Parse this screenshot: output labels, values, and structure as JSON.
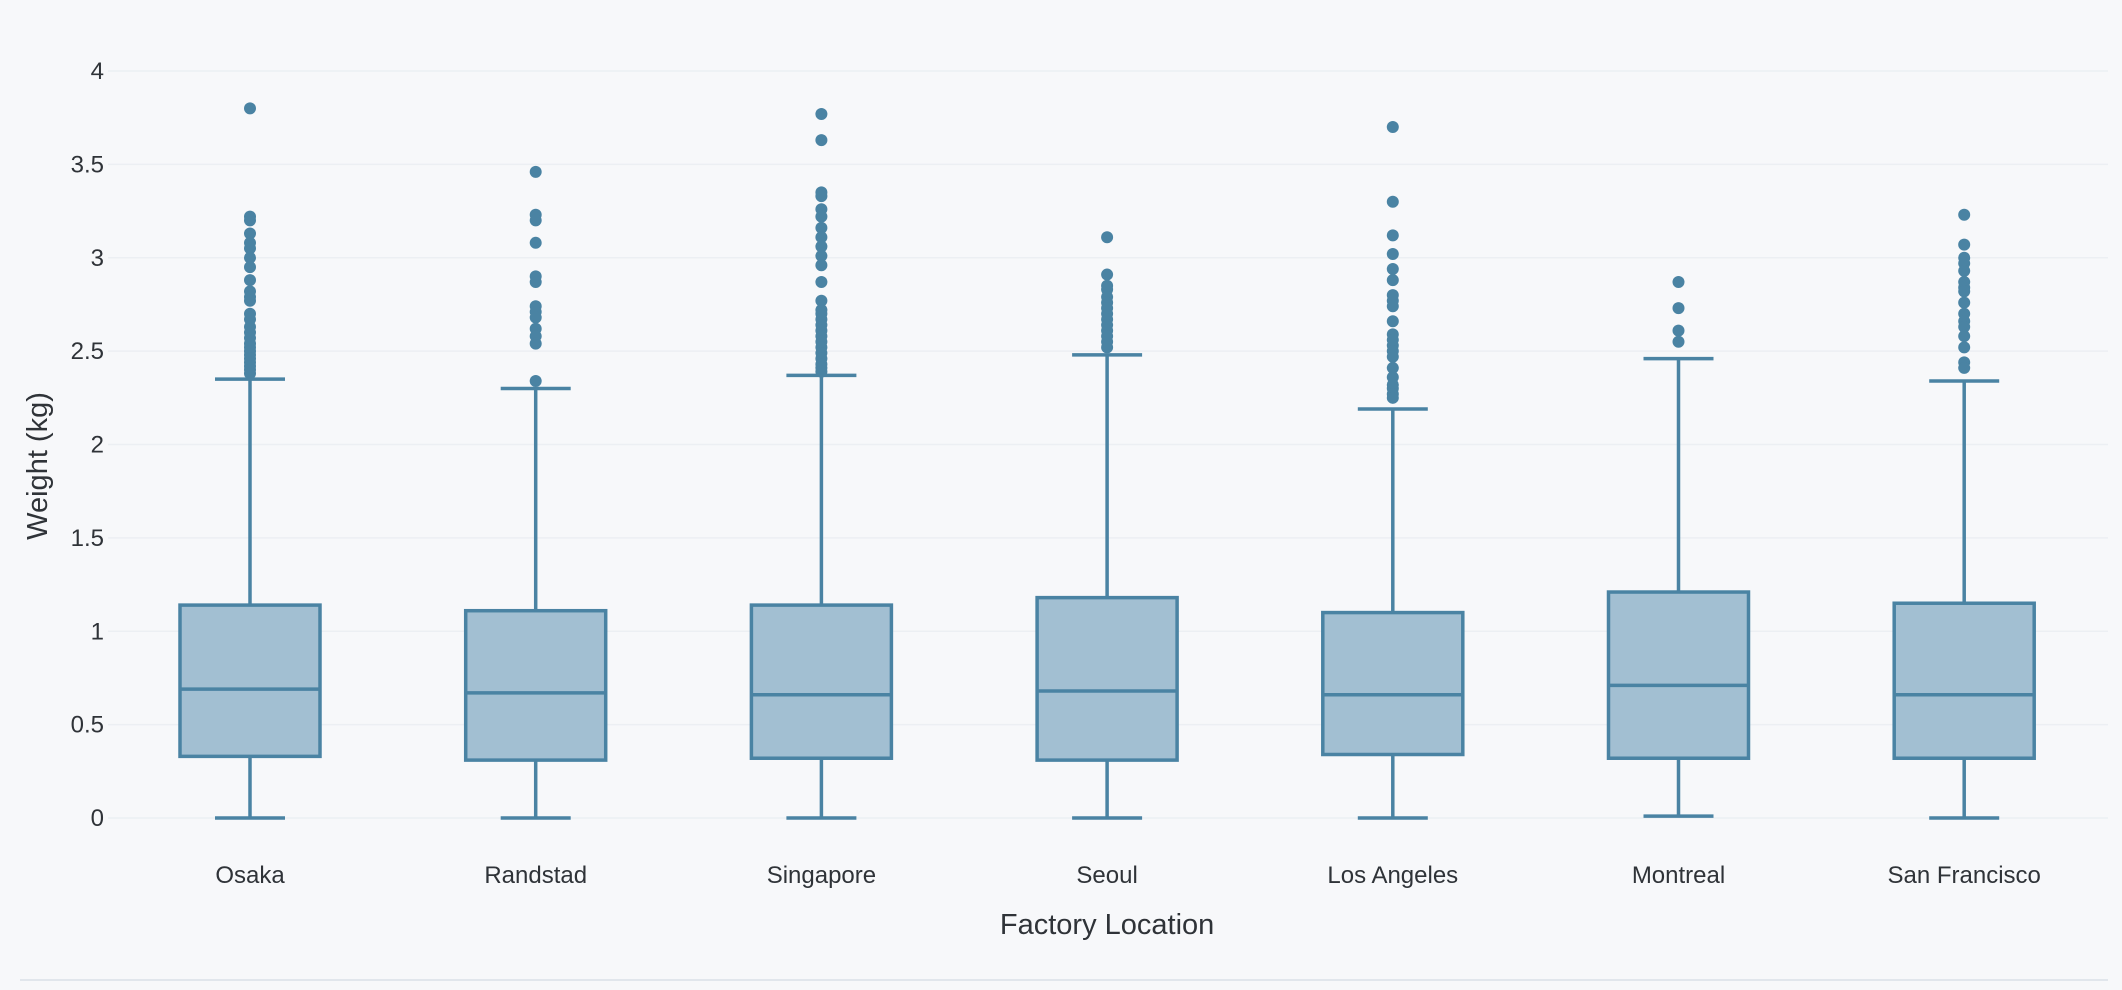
{
  "chart_data": {
    "type": "box",
    "xlabel": "Factory Location",
    "ylabel": "Weight (kg)",
    "ylim": [
      0,
      4
    ],
    "yticks": [
      0,
      0.5,
      1,
      1.5,
      2,
      2.5,
      3,
      3.5,
      4
    ],
    "grid": true,
    "colors": {
      "stroke": "#4a83a3",
      "fill": "#a2bfd2",
      "grid": "#eceff3",
      "text": "#2f3338"
    },
    "categories": [
      "Osaka",
      "Randstad",
      "Singapore",
      "Seoul",
      "Los Angeles",
      "Montreal",
      "San Francisco"
    ],
    "boxes": [
      {
        "category": "Osaka",
        "min": 0,
        "q1": 0.33,
        "median": 0.69,
        "q3": 1.14,
        "max": 2.35,
        "outliers": [
          3.8,
          3.22,
          3.2,
          3.13,
          3.08,
          3.05,
          3.0,
          2.95,
          2.88,
          2.82,
          2.79,
          2.77,
          2.7,
          2.67,
          2.63,
          2.6,
          2.57,
          2.54,
          2.52,
          2.5,
          2.48,
          2.46,
          2.44,
          2.42,
          2.4,
          2.38
        ]
      },
      {
        "category": "Randstad",
        "min": 0,
        "q1": 0.31,
        "median": 0.67,
        "q3": 1.11,
        "max": 2.3,
        "outliers": [
          3.46,
          3.23,
          3.2,
          3.08,
          2.9,
          2.87,
          2.74,
          2.71,
          2.68,
          2.62,
          2.58,
          2.54,
          2.34
        ]
      },
      {
        "category": "Singapore",
        "min": 0,
        "q1": 0.32,
        "median": 0.66,
        "q3": 1.14,
        "max": 2.37,
        "outliers": [
          3.77,
          3.63,
          3.35,
          3.33,
          3.26,
          3.22,
          3.16,
          3.11,
          3.06,
          3.01,
          2.96,
          2.87,
          2.77,
          2.72,
          2.7,
          2.67,
          2.64,
          2.61,
          2.58,
          2.55,
          2.52,
          2.49,
          2.46,
          2.43,
          2.41,
          2.39
        ]
      },
      {
        "category": "Seoul",
        "min": 0,
        "q1": 0.31,
        "median": 0.68,
        "q3": 1.18,
        "max": 2.48,
        "outliers": [
          3.11,
          2.91,
          2.85,
          2.83,
          2.79,
          2.76,
          2.73,
          2.7,
          2.67,
          2.64,
          2.61,
          2.58,
          2.55,
          2.52
        ]
      },
      {
        "category": "Los Angeles",
        "min": 0,
        "q1": 0.34,
        "median": 0.66,
        "q3": 1.1,
        "max": 2.19,
        "outliers": [
          3.7,
          3.3,
          3.12,
          3.02,
          2.94,
          2.88,
          2.8,
          2.77,
          2.74,
          2.66,
          2.59,
          2.56,
          2.53,
          2.5,
          2.47,
          2.41,
          2.36,
          2.32,
          2.3,
          2.27,
          2.25
        ]
      },
      {
        "category": "Montreal",
        "min": 0.01,
        "q1": 0.32,
        "median": 0.71,
        "q3": 1.21,
        "max": 2.46,
        "outliers": [
          2.87,
          2.73,
          2.61,
          2.55
        ]
      },
      {
        "category": "San Francisco",
        "min": 0,
        "q1": 0.32,
        "median": 0.66,
        "q3": 1.15,
        "max": 2.34,
        "outliers": [
          3.23,
          3.07,
          3.0,
          2.97,
          2.93,
          2.87,
          2.84,
          2.82,
          2.76,
          2.7,
          2.66,
          2.63,
          2.58,
          2.52,
          2.44,
          2.41
        ]
      }
    ]
  }
}
